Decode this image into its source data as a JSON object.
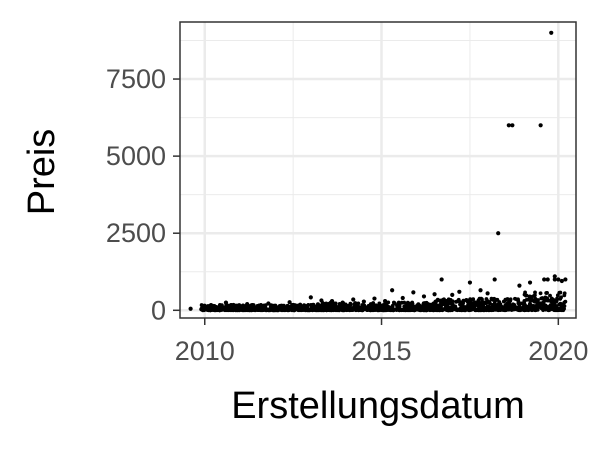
{
  "chart_data": {
    "type": "scatter",
    "title": "",
    "xlabel": "Erstellungsdatum",
    "ylabel": "Preis",
    "xlim": [
      2009.3,
      2020.5
    ],
    "ylim": [
      -250,
      9350
    ],
    "x_ticks": [
      2010,
      2015,
      2020
    ],
    "x_tick_labels": [
      "2010",
      "2015",
      "2020"
    ],
    "y_ticks": [
      0,
      2500,
      5000,
      7500
    ],
    "y_tick_labels": [
      "0",
      "2500",
      "5000",
      "7500"
    ],
    "grid": true,
    "legend": "none",
    "point_color": "#000000",
    "panel_border_color": "#333333",
    "grid_color": "#ebebeb",
    "series": [
      {
        "points": [
          [
            2009.6,
            50
          ],
          [
            2010.1,
            120
          ],
          [
            2010.4,
            80
          ],
          [
            2010.6,
            250
          ],
          [
            2010.9,
            150
          ],
          [
            2011.2,
            200
          ],
          [
            2011.5,
            130
          ],
          [
            2011.8,
            220
          ],
          [
            2012.1,
            90
          ],
          [
            2012.4,
            260
          ],
          [
            2012.7,
            180
          ],
          [
            2013.0,
            420
          ],
          [
            2013.3,
            320
          ],
          [
            2013.6,
            300
          ],
          [
            2013.9,
            250
          ],
          [
            2014.2,
            350
          ],
          [
            2014.5,
            280
          ],
          [
            2014.8,
            380
          ],
          [
            2015.1,
            300
          ],
          [
            2015.3,
            650
          ],
          [
            2015.6,
            400
          ],
          [
            2015.9,
            580
          ],
          [
            2016.2,
            450
          ],
          [
            2016.5,
            520
          ],
          [
            2016.7,
            1000
          ],
          [
            2017.0,
            500
          ],
          [
            2017.2,
            600
          ],
          [
            2017.5,
            900
          ],
          [
            2017.8,
            650
          ],
          [
            2018.0,
            550
          ],
          [
            2018.2,
            1000
          ],
          [
            2018.3,
            2500
          ],
          [
            2018.6,
            6000
          ],
          [
            2018.7,
            6000
          ],
          [
            2018.9,
            800
          ],
          [
            2019.2,
            900
          ],
          [
            2019.5,
            6000
          ],
          [
            2019.6,
            1000
          ],
          [
            2019.7,
            1000
          ],
          [
            2019.8,
            9000
          ],
          [
            2019.9,
            1000
          ],
          [
            2020.0,
            1000
          ],
          [
            2020.1,
            950
          ],
          [
            2020.2,
            1000
          ],
          [
            2019.9,
            1100
          ]
        ],
        "dense_band": [
          {
            "x_from": 2009.9,
            "x_to": 2013.0,
            "y_min": 0,
            "y_max": 180
          },
          {
            "x_from": 2013.0,
            "x_to": 2016.5,
            "y_min": 0,
            "y_max": 260
          },
          {
            "x_from": 2016.5,
            "x_to": 2019.0,
            "y_min": 0,
            "y_max": 380
          },
          {
            "x_from": 2019.0,
            "x_to": 2020.2,
            "y_min": 0,
            "y_max": 600
          }
        ]
      }
    ]
  }
}
